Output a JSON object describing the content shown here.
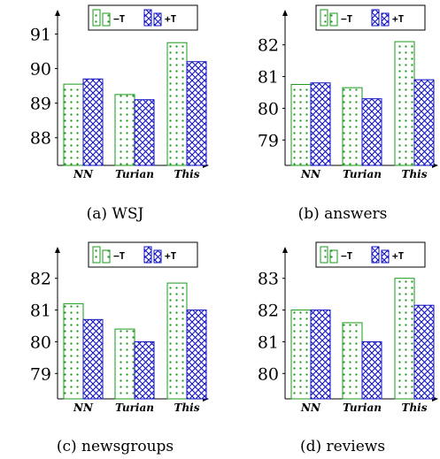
{
  "chart_data": [
    {
      "type": "bar",
      "caption": "(a) WSJ",
      "categories": [
        "NN",
        "Turian",
        "This"
      ],
      "series": [
        {
          "name": "−T",
          "values": [
            89.55,
            89.25,
            90.75
          ]
        },
        {
          "name": "+T",
          "values": [
            89.7,
            89.1,
            90.2
          ]
        }
      ],
      "yticks": [
        "88",
        "89",
        "90",
        "91"
      ],
      "ylim": [
        87.2,
        91.6
      ],
      "legend_position": "top-right",
      "grid": false
    },
    {
      "type": "bar",
      "caption": "(b) answers",
      "categories": [
        "NN",
        "Turian",
        "This"
      ],
      "series": [
        {
          "name": "−T",
          "values": [
            80.75,
            80.65,
            82.1
          ]
        },
        {
          "name": "+T",
          "values": [
            80.8,
            80.3,
            80.9
          ]
        }
      ],
      "yticks": [
        "79",
        "80",
        "81",
        "82"
      ],
      "ylim": [
        78.2,
        82.8
      ],
      "legend_position": "top-right",
      "grid": false
    },
    {
      "type": "bar",
      "caption": "(c) newsgroups",
      "categories": [
        "NN",
        "Turian",
        "This"
      ],
      "series": [
        {
          "name": "−T",
          "values": [
            81.2,
            80.4,
            81.85
          ]
        },
        {
          "name": "+T",
          "values": [
            80.7,
            80.0,
            81.0
          ]
        }
      ],
      "yticks": [
        "79",
        "80",
        "81",
        "82"
      ],
      "ylim": [
        78.2,
        82.8
      ],
      "legend_position": "top-right",
      "grid": false
    },
    {
      "type": "bar",
      "caption": "(d) reviews",
      "categories": [
        "NN",
        "Turian",
        "This"
      ],
      "series": [
        {
          "name": "−T",
          "values": [
            82.0,
            81.6,
            83.0
          ]
        },
        {
          "name": "+T",
          "values": [
            82.0,
            81.0,
            82.15
          ]
        }
      ],
      "yticks": [
        "80",
        "81",
        "82",
        "83"
      ],
      "ylim": [
        79.2,
        83.8
      ],
      "legend_position": "top-right",
      "grid": false
    }
  ],
  "colors": {
    "minus_t": "#1a9a1a",
    "plus_t": "#1010c0"
  }
}
